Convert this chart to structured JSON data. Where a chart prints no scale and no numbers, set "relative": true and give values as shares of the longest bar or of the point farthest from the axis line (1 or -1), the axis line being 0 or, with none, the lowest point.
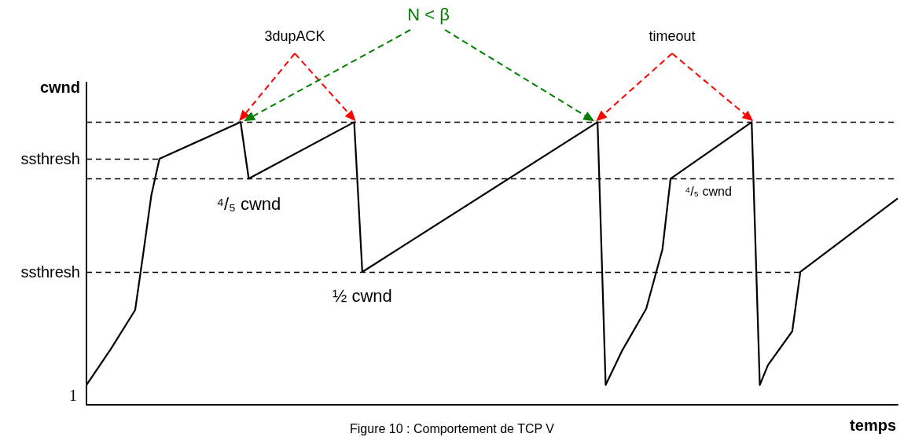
{
  "chart_data": {
    "type": "line",
    "relative": true,
    "xlabel": "temps",
    "ylabel": "cwnd",
    "color": "#000000",
    "marker": "none",
    "line_style": "solid",
    "categories": [
      null,
      null,
      null,
      null,
      null,
      null,
      null,
      null,
      null,
      null,
      null,
      null,
      null,
      null,
      null,
      null,
      null,
      null,
      null,
      null,
      null,
      null,
      null,
      null,
      null,
      null,
      null,
      null,
      null,
      null,
      null,
      null,
      null,
      null,
      null,
      null,
      null,
      null,
      null,
      null,
      null,
      null,
      null,
      null,
      null,
      null,
      null,
      null,
      null,
      null,
      null,
      null,
      null,
      null,
      null,
      null,
      null,
      null,
      null,
      null,
      null,
      null,
      null,
      null,
      null,
      null,
      null,
      null,
      null,
      null,
      null,
      null,
      null,
      null,
      null,
      null,
      null,
      null,
      null,
      null,
      null,
      null,
      null,
      null,
      null,
      null,
      null,
      null,
      null,
      null,
      null,
      null,
      null,
      null,
      null,
      null,
      null,
      null,
      null,
      null,
      null
    ],
    "values": [
      0.07,
      null,
      null,
      0.197,
      null,
      null,
      0.335,
      0.535,
      0.742,
      0.87,
      null,
      null,
      null,
      null,
      null,
      null,
      null,
      null,
      null,
      1,
      0.8,
      null,
      null,
      null,
      null,
      null,
      null,
      null,
      null,
      null,
      null,
      null,
      null,
      1,
      0.47,
      null,
      null,
      null,
      null,
      null,
      null,
      null,
      null,
      null,
      null,
      null,
      null,
      null,
      null,
      null,
      null,
      null,
      null,
      null,
      null,
      null,
      null,
      null,
      null,
      null,
      null,
      null,
      null,
      1,
      0.07,
      null,
      0.19,
      null,
      null,
      0.34,
      null,
      0.55,
      0.8,
      null,
      null,
      null,
      null,
      null,
      null,
      null,
      null,
      null,
      1,
      0.07,
      0.14,
      null,
      null,
      0.26,
      0.47,
      null,
      null,
      null,
      null,
      null,
      null,
      null,
      null,
      null,
      null,
      null,
      0.73
    ],
    "ref_lines": [
      {
        "axis": "y",
        "value": 1,
        "label": null,
        "color": "#000000",
        "line_style": "dashed"
      },
      {
        "axis": "y",
        "value": 0.87,
        "label": "ssthresh",
        "color": "#000000",
        "line_style": "dashed"
      },
      {
        "axis": "y",
        "value": 0.8,
        "label": null,
        "color": "#000000",
        "line_style": "dashed"
      },
      {
        "axis": "y",
        "value": 0.47,
        "label": "ssthresh",
        "color": "#000000",
        "line_style": "dashed"
      }
    ],
    "annotations": [
      "3dupACK",
      "N < β",
      "timeout",
      "1",
      "⁴/₅ cwnd",
      "½ cwnd",
      "⁴/₅ cwnd",
      "Figure 10 : Comportement de TCP V"
    ]
  }
}
